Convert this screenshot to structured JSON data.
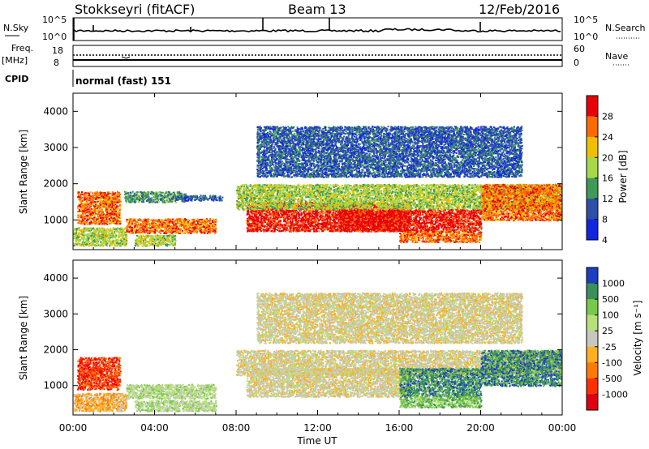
{
  "header": {
    "station": "Stokkseyri (fitACF)",
    "beam": "Beam 13",
    "date": "12/Feb/2016"
  },
  "strips": {
    "nsky_label": "N.Sky",
    "nsearch_label": "N.Search",
    "noise_ticks_left": [
      "10^5",
      "10^0"
    ],
    "noise_ticks_right": [
      "10^5",
      "10^0"
    ],
    "freq_label": "Freq.",
    "freq_unit": "[MHz]",
    "freq_ticks": [
      "18",
      "8"
    ],
    "nave_label": "Nave",
    "nave_ticks": [
      "60",
      "0"
    ],
    "cpid_label": "CPID",
    "cpid_value": "normal (fast) 151"
  },
  "chart_data": [
    {
      "type": "heatmap",
      "panel": "power",
      "xlabel": "",
      "ylabel": "Slant Range [km]",
      "xlim": [
        0,
        24
      ],
      "ylim": [
        180,
        4500
      ],
      "yticks": [
        1000,
        2000,
        3000,
        4000
      ],
      "colorbar": {
        "label": "Power [dB]",
        "ticks": [
          "28",
          "24",
          "20",
          "16",
          "12",
          "8",
          "4"
        ],
        "colors": [
          "#e8000a",
          "#ff6a00",
          "#f0c000",
          "#a6d84a",
          "#3f9a58",
          "#2d4fa8",
          "#1026e0"
        ]
      },
      "features": [
        {
          "t0": 0.2,
          "t1": 2.3,
          "r0": 900,
          "r1": 1800,
          "level": 5
        },
        {
          "t0": 0.0,
          "t1": 2.6,
          "r0": 300,
          "r1": 800,
          "level": 3
        },
        {
          "t0": 2.5,
          "t1": 5.5,
          "r0": 1500,
          "r1": 1800,
          "level": 2
        },
        {
          "t0": 2.6,
          "t1": 7.0,
          "r0": 650,
          "r1": 1050,
          "level": 5
        },
        {
          "t0": 3.0,
          "t1": 5.0,
          "r0": 300,
          "r1": 600,
          "level": 3
        },
        {
          "t0": 5.0,
          "t1": 7.3,
          "r0": 1550,
          "r1": 1700,
          "level": 1
        },
        {
          "t0": 8.5,
          "t1": 16.5,
          "r0": 700,
          "r1": 1500,
          "level": 6
        },
        {
          "t0": 8.0,
          "t1": 24.0,
          "r0": 1300,
          "r1": 2000,
          "level": 3
        },
        {
          "t0": 13.0,
          "t1": 20.0,
          "r0": 700,
          "r1": 1300,
          "level": 6
        },
        {
          "t0": 16.0,
          "t1": 20.0,
          "r0": 400,
          "r1": 700,
          "level": 5
        },
        {
          "t0": 20.0,
          "t1": 24.0,
          "r0": 1000,
          "r1": 2000,
          "level": 5
        },
        {
          "t0": 9.0,
          "t1": 22.0,
          "r0": 2200,
          "r1": 3600,
          "level": 1
        }
      ]
    },
    {
      "type": "heatmap",
      "panel": "velocity",
      "xlabel": "Time UT",
      "ylabel": "Slant Range [km]",
      "xlim": [
        0,
        24
      ],
      "ylim": [
        180,
        4500
      ],
      "yticks": [
        1000,
        2000,
        3000,
        4000
      ],
      "xticks": [
        "00:00",
        "04:00",
        "08:00",
        "12:00",
        "16:00",
        "20:00",
        "00:00"
      ],
      "colorbar": {
        "label": "Velocity [m s⁻¹]",
        "ticks": [
          "1000",
          "500",
          "100",
          "25",
          "-25",
          "-100",
          "-500",
          "-1000"
        ],
        "colors": [
          "#1a3fc0",
          "#3a8f5a",
          "#78c84a",
          "#b8e07a",
          "#c8c8c0",
          "#ffb020",
          "#ff7a00",
          "#ff3000",
          "#e00010"
        ]
      },
      "features": [
        {
          "t0": 0.2,
          "t1": 2.3,
          "r0": 900,
          "r1": 1800,
          "level": 1
        },
        {
          "t0": 0.0,
          "t1": 2.6,
          "r0": 300,
          "r1": 800,
          "level": 3
        },
        {
          "t0": 2.6,
          "t1": 7.0,
          "r0": 650,
          "r1": 1050,
          "level": 5
        },
        {
          "t0": 3.0,
          "t1": 7.0,
          "r0": 300,
          "r1": 600,
          "level": 5
        },
        {
          "t0": 8.0,
          "t1": 24.0,
          "r0": 1300,
          "r1": 2000,
          "level": 4
        },
        {
          "t0": 8.5,
          "t1": 16.5,
          "r0": 700,
          "r1": 1500,
          "level": 4
        },
        {
          "t0": 16.0,
          "t1": 20.0,
          "r0": 700,
          "r1": 1500,
          "level": 7
        },
        {
          "t0": 16.0,
          "t1": 20.0,
          "r0": 400,
          "r1": 700,
          "level": 6
        },
        {
          "t0": 20.0,
          "t1": 24.0,
          "r0": 1000,
          "r1": 2000,
          "level": 7
        },
        {
          "t0": 9.0,
          "t1": 22.0,
          "r0": 2200,
          "r1": 3600,
          "level": 4
        }
      ]
    }
  ]
}
